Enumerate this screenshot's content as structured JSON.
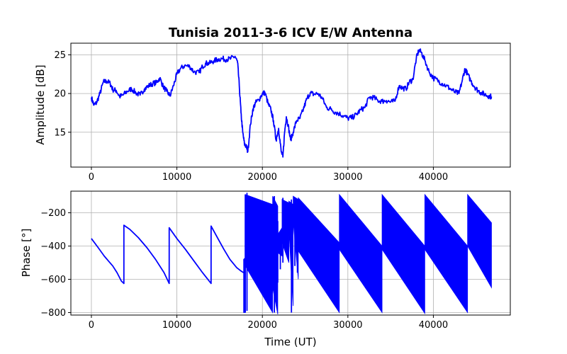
{
  "figure": {
    "title": "Tunisia 2011-3-6 ICV   E/W Antenna",
    "xlabel": "Time (UT)"
  },
  "chart_data": [
    {
      "type": "line",
      "title": "Tunisia 2011-3-6 ICV   E/W Antenna",
      "xlabel": "",
      "ylabel": "Amplitude [dB]",
      "xlim": [
        -2400,
        49000
      ],
      "ylim": [
        10.5,
        26.5
      ],
      "xticks": [
        0,
        10000,
        20000,
        30000,
        40000
      ],
      "xtick_labels": [
        "0",
        "10000",
        "20000",
        "30000",
        "40000"
      ],
      "yticks": [
        15,
        20,
        25
      ],
      "ytick_labels": [
        "15",
        "20",
        "25"
      ],
      "grid": true,
      "color": "#0000ff",
      "noise": 0.35,
      "series": [
        {
          "x": [
            0,
            300,
            600,
            1000,
            1400,
            1800,
            2200,
            2500,
            2900,
            3300,
            3700,
            4200,
            4700,
            5200,
            5700,
            6200,
            6700,
            7200,
            7600,
            8000,
            8400,
            8800,
            9200,
            9600,
            10000,
            10400,
            10900,
            11500,
            12000,
            12600,
            13000,
            13400,
            13800,
            14300,
            14800,
            15300,
            15800,
            16300,
            16800,
            17100,
            17300,
            17500,
            17700,
            17900,
            18100,
            18300,
            18600,
            18900,
            19200,
            19600,
            20000,
            20300,
            20700,
            21000,
            21300,
            21600,
            21900,
            22200,
            22400,
            22600,
            22800,
            23000,
            23300,
            23600,
            24000,
            24400,
            24800,
            25200,
            25600,
            26000,
            26500,
            27000,
            27500,
            28000,
            28500,
            29000,
            29500,
            30000,
            30500,
            31000,
            31500,
            32000,
            32500,
            33000,
            33500,
            34000,
            34500,
            35000,
            35500,
            36000,
            36400,
            36800,
            37200,
            37600,
            38000,
            38300,
            38600,
            39000,
            39500,
            40000,
            40500,
            41000,
            41500,
            42000,
            42500,
            43000,
            43400,
            43700,
            44000,
            44400,
            44800,
            45200,
            45600,
            46000,
            46400,
            46800
          ],
          "values": [
            19.5,
            18.5,
            18.8,
            20.0,
            21.5,
            21.6,
            21.3,
            20.5,
            20.4,
            19.6,
            19.8,
            20.3,
            20.6,
            20.1,
            19.8,
            20.6,
            21.0,
            21.3,
            21.4,
            22.0,
            20.9,
            20.3,
            19.7,
            21.0,
            22.5,
            23.2,
            23.6,
            23.5,
            22.8,
            22.7,
            23.5,
            23.9,
            23.9,
            24.2,
            24.4,
            24.5,
            24.4,
            24.5,
            24.8,
            24.0,
            21.0,
            17.5,
            15.0,
            13.5,
            13.2,
            12.5,
            16.0,
            18.0,
            18.8,
            19.2,
            20.0,
            20.1,
            18.6,
            17.9,
            16.5,
            14.0,
            15.5,
            12.5,
            11.8,
            15.0,
            17.0,
            16.0,
            14.0,
            15.0,
            16.5,
            16.8,
            18.0,
            19.3,
            20.1,
            19.9,
            20.0,
            19.4,
            18.2,
            18.0,
            17.6,
            17.4,
            17.1,
            16.8,
            16.9,
            17.3,
            17.9,
            18.2,
            19.5,
            19.5,
            19.1,
            19.0,
            19.1,
            18.9,
            19.0,
            21.0,
            20.7,
            20.6,
            21.5,
            21.8,
            24.5,
            25.6,
            25.3,
            24.3,
            22.8,
            22.0,
            21.7,
            21.3,
            21.0,
            20.6,
            20.2,
            20.0,
            21.8,
            23.2,
            22.5,
            21.6,
            20.9,
            20.4,
            20.1,
            19.9,
            19.7,
            19.6
          ]
        }
      ]
    },
    {
      "type": "line",
      "title": "",
      "xlabel": "Time (UT)",
      "ylabel": "Phase [°]",
      "xlim": [
        -2400,
        49000
      ],
      "ylim": [
        -815,
        -70
      ],
      "xticks": [
        0,
        10000,
        20000,
        30000,
        40000
      ],
      "xtick_labels": [
        "0",
        "10000",
        "20000",
        "30000",
        "40000"
      ],
      "yticks": [
        -200,
        -400,
        -600,
        -800
      ],
      "ytick_labels": [
        "−200",
        "−400",
        "−600",
        "−800"
      ],
      "grid": true,
      "color": "#0000ff",
      "series": [
        {
          "x": [
            0,
            800,
            1500,
            2000,
            2500,
            3000,
            3500,
            3800,
            3801,
            4500,
            5500,
            6500,
            7500,
            8500,
            9100,
            9101,
            10000,
            11000,
            12000,
            13000,
            14000,
            14001,
            14800,
            15500,
            16200,
            17000,
            17500,
            17800
          ],
          "values": [
            -355,
            -410,
            -460,
            -490,
            -520,
            -560,
            -610,
            -625,
            -275,
            -300,
            -350,
            -410,
            -480,
            -560,
            -625,
            -290,
            -355,
            -420,
            -490,
            -560,
            -625,
            -280,
            -355,
            -420,
            -480,
            -530,
            -550,
            -560
          ]
        }
      ],
      "bands": [
        {
          "x0": 17800,
          "x1": 18000,
          "top0": -480,
          "top1": -470,
          "bottom0": -800,
          "bottom1": -800
        },
        {
          "x0": 18000,
          "x1": 21200,
          "top0": -90,
          "top1": -150,
          "bottom0": -520,
          "bottom1": -800
        },
        {
          "x0": 21200,
          "x1": 21800,
          "top0": -100,
          "top1": -160,
          "bottom0": -650,
          "bottom1": -810
        },
        {
          "x0": 21800,
          "x1": 22300,
          "top0": -330,
          "top1": -290,
          "bottom0": -440,
          "bottom1": -460
        },
        {
          "x0": 22300,
          "x1": 23100,
          "top0": -120,
          "top1": -140,
          "bottom0": -380,
          "bottom1": -500
        },
        {
          "x0": 23100,
          "x1": 23600,
          "top0": -130,
          "top1": -150,
          "bottom0": -300,
          "bottom1": -760
        },
        {
          "x0": 23600,
          "x1": 24200,
          "top0": -100,
          "top1": -120,
          "bottom0": -250,
          "bottom1": -600
        },
        {
          "x0": 24200,
          "x1": 29000,
          "top0": -110,
          "top1": -380,
          "bottom0": -430,
          "bottom1": -800
        },
        {
          "x0": 29000,
          "x1": 34000,
          "top0": -90,
          "top1": -400,
          "bottom0": -420,
          "bottom1": -800
        },
        {
          "x0": 34000,
          "x1": 39000,
          "top0": -90,
          "top1": -400,
          "bottom0": -420,
          "bottom1": -805
        },
        {
          "x0": 39000,
          "x1": 44000,
          "top0": -90,
          "top1": -400,
          "bottom0": -420,
          "bottom1": -800
        },
        {
          "x0": 44000,
          "x1": 46800,
          "top0": -90,
          "top1": -260,
          "bottom0": -400,
          "bottom1": -650
        }
      ],
      "spikes": [
        {
          "x": 18000,
          "from": -90,
          "to": -800
        },
        {
          "x": 18200,
          "from": -80,
          "to": -790
        },
        {
          "x": 21400,
          "from": -100,
          "to": -800
        },
        {
          "x": 21800,
          "from": -250,
          "to": -620
        },
        {
          "x": 22100,
          "from": -350,
          "to": -540
        },
        {
          "x": 22400,
          "from": -110,
          "to": -500
        },
        {
          "x": 23400,
          "from": -120,
          "to": -800
        },
        {
          "x": 23800,
          "from": -150,
          "to": -520
        },
        {
          "x": 24100,
          "from": -120,
          "to": -560
        }
      ]
    }
  ]
}
